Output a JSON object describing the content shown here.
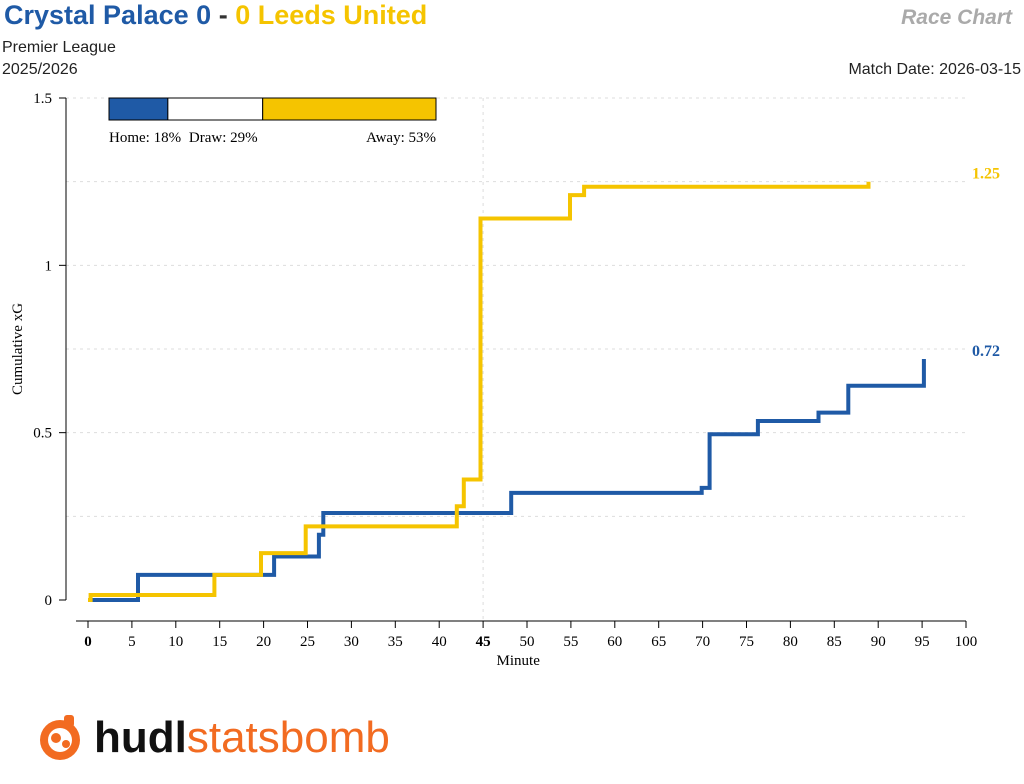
{
  "header": {
    "home_team": "Crystal Palace",
    "home_score": "0",
    "separator": "-",
    "away_score": "0",
    "away_team": "Leeds United",
    "chart_type": "Race Chart",
    "competition": "Premier League",
    "season": "2025/2026",
    "match_date": "Match Date: 2026-03-15"
  },
  "colors": {
    "home": "#1f5aa6",
    "away": "#f5c400",
    "brand": "#f26b21"
  },
  "win_probability": {
    "home_label": "Home: 18%",
    "draw_label": "Draw: 29%",
    "away_label": "Away: 53%",
    "home": 0.18,
    "draw": 0.29,
    "away": 0.53
  },
  "logo": {
    "icon": "statsbomb-logo-icon",
    "word1": "hudl",
    "word2": "statsbomb"
  },
  "chart_data": {
    "type": "line",
    "xlabel": "Minute",
    "ylabel": "Cumulative xG",
    "xlim": [
      0,
      100
    ],
    "ylim": [
      0,
      1.5
    ],
    "x_ticks": [
      "0",
      "5",
      "10",
      "15",
      "20",
      "25",
      "30",
      "35",
      "40",
      "45",
      "50",
      "55",
      "60",
      "65",
      "70",
      "75",
      "80",
      "85",
      "90",
      "95",
      "100"
    ],
    "y_ticks": [
      "0",
      "0.5",
      "1",
      "1.5"
    ],
    "grid": "dashed horizontal at 0.25 steps, dashed vertical at 45",
    "step": true,
    "series": [
      {
        "name": "Crystal Palace",
        "color": "#1f5aa6",
        "end_label": "0.72",
        "x": [
          0,
          5.7,
          5.7,
          21.2,
          21.2,
          26.3,
          26.3,
          26.8,
          26.8,
          48.2,
          48.2,
          69.9,
          69.9,
          70.8,
          70.8,
          76.3,
          76.3,
          83.2,
          83.2,
          86.6,
          86.6,
          95.2,
          95.2
        ],
        "y": [
          0,
          0,
          0.075,
          0.075,
          0.13,
          0.13,
          0.195,
          0.195,
          0.26,
          0.26,
          0.32,
          0.32,
          0.335,
          0.335,
          0.495,
          0.495,
          0.535,
          0.535,
          0.56,
          0.56,
          0.64,
          0.64,
          0.72
        ]
      },
      {
        "name": "Leeds United",
        "color": "#f5c400",
        "end_label": "1.25",
        "x": [
          0,
          0.3,
          0.3,
          14.4,
          14.4,
          19.7,
          19.7,
          24.8,
          24.8,
          42.0,
          42.0,
          42.8,
          42.8,
          44.7,
          44.7,
          54.9,
          54.9,
          56.5,
          56.5,
          88.9,
          88.9
        ],
        "y": [
          0,
          0,
          0.015,
          0.015,
          0.075,
          0.075,
          0.14,
          0.14,
          0.22,
          0.22,
          0.28,
          0.28,
          0.36,
          0.36,
          1.14,
          1.14,
          1.21,
          1.21,
          1.235,
          1.235,
          1.25
        ]
      }
    ]
  }
}
